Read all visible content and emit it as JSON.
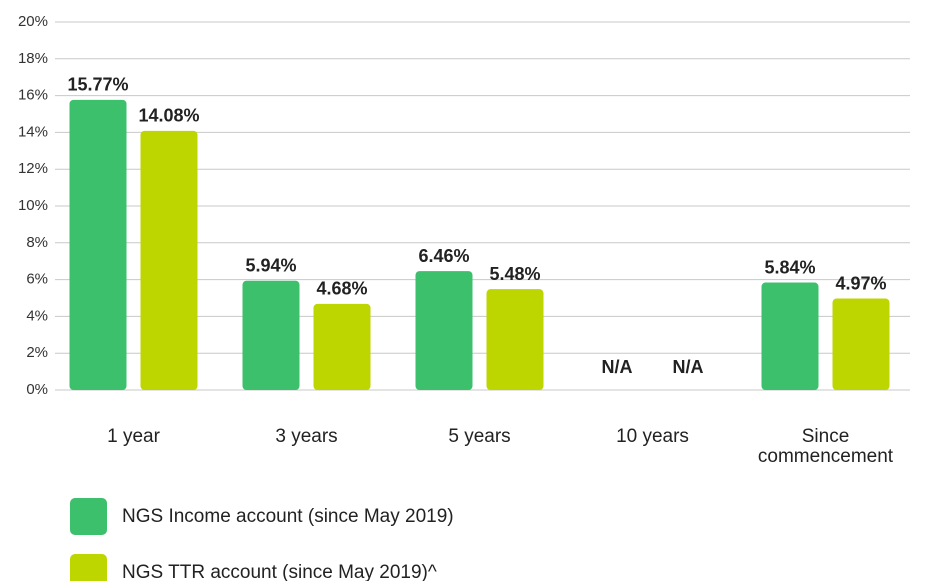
{
  "chart_data": {
    "type": "bar",
    "categories": [
      "1 year",
      "3 years",
      "5 years",
      "10 years",
      "Since commencement"
    ],
    "series": [
      {
        "name": "NGS Income account (since May 2019)",
        "color": "#3cc06c",
        "values": [
          15.77,
          5.94,
          6.46,
          null,
          5.84
        ],
        "value_labels": [
          "15.77%",
          "5.94%",
          "6.46%",
          "N/A",
          "5.84%"
        ]
      },
      {
        "name": "NGS TTR account (since May 2019)^",
        "color": "#bed600",
        "values": [
          14.08,
          4.68,
          5.48,
          null,
          4.97
        ],
        "value_labels": [
          "14.08%",
          "4.68%",
          "5.48%",
          "N/A",
          "4.97%"
        ]
      }
    ],
    "ylim": [
      0,
      20
    ],
    "yticks": [
      {
        "value": 0,
        "label": "0%"
      },
      {
        "value": 2,
        "label": "2%"
      },
      {
        "value": 4,
        "label": "4%"
      },
      {
        "value": 6,
        "label": "6%"
      },
      {
        "value": 8,
        "label": "8%"
      },
      {
        "value": 10,
        "label": "10%"
      },
      {
        "value": 12,
        "label": "12%"
      },
      {
        "value": 14,
        "label": "14%"
      },
      {
        "value": 16,
        "label": "16%"
      },
      {
        "value": 18,
        "label": "18%"
      },
      {
        "value": 20,
        "label": "20%"
      }
    ],
    "grid": true,
    "legend": "bottom-left"
  }
}
